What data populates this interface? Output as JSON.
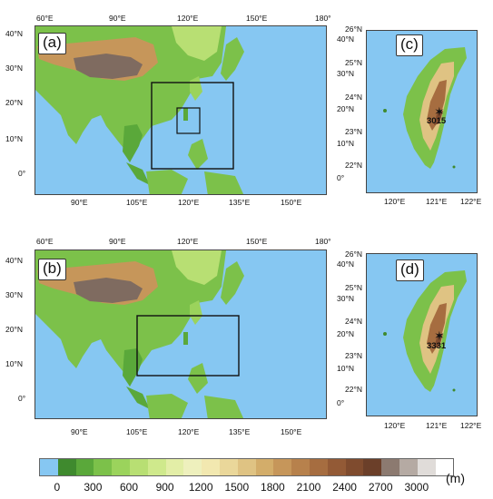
{
  "panels": {
    "a": "(a)",
    "b": "(b)",
    "c": "(c)",
    "d": "(d)"
  },
  "big_map": {
    "top_lon": [
      "60°E",
      "90°E",
      "120°E",
      "150°E",
      "180°"
    ],
    "bottom_lon": [
      "90°E",
      "105°E",
      "120°E",
      "135°E",
      "150°E"
    ],
    "left_lat": [
      "40°N",
      "30°N",
      "20°N",
      "10°N",
      "0°"
    ],
    "right_lat": [
      "40°N",
      "30°N",
      "20°N",
      "10°N",
      "0°"
    ]
  },
  "taiwan_map": {
    "lat": [
      "26°N",
      "25°N",
      "24°N",
      "23°N",
      "22°N"
    ],
    "lon": [
      "120°E",
      "121°E",
      "122°E"
    ]
  },
  "peaks": {
    "c": "3015",
    "d": "3331"
  },
  "colorbar": {
    "labels": [
      "0",
      "300",
      "600",
      "900",
      "1200",
      "1500",
      "1800",
      "2100",
      "2400",
      "2700",
      "3000"
    ],
    "unit": "(m)",
    "colors": [
      "#86c7f2",
      "#3f8a2e",
      "#5aa83a",
      "#7cc14a",
      "#9bd35c",
      "#b8df73",
      "#cfe98c",
      "#e3eea7",
      "#eef0bd",
      "#f2e8b0",
      "#ead79a",
      "#dfc383",
      "#d3ad6a",
      "#c6965a",
      "#b7814c",
      "#a66d40",
      "#935a36",
      "#7f4b2e",
      "#6b3f29",
      "#8c7a70",
      "#b5aaa3",
      "#e0dcd9",
      "#ffffff"
    ]
  }
}
